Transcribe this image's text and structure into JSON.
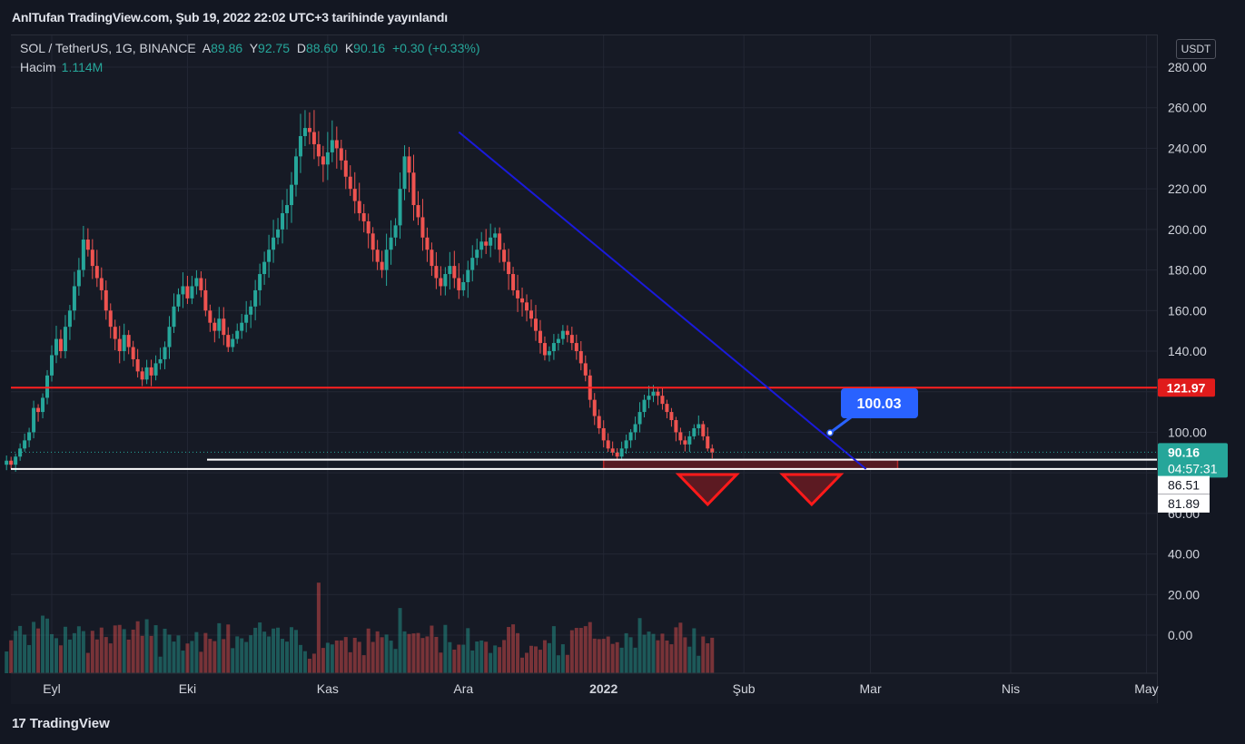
{
  "header": {
    "publish_line": "AnlTufan TradingView.com, Şub 19, 2022 22:02 UTC+3 tarihinde yayınlandı"
  },
  "legend": {
    "symbol": "SOL / TetherUS, 1G, BINANCE",
    "open_label": "A",
    "open": "89.86",
    "high_label": "Y",
    "high": "92.75",
    "low_label": "D",
    "low": "88.60",
    "close_label": "K",
    "close": "90.16",
    "change": "+0.30 (+0.33%)",
    "volume_label": "Hacim",
    "volume": "1.114M"
  },
  "currency_button": "USDT",
  "footer": {
    "logo_mark": "17",
    "brand": "TradingView"
  },
  "colors": {
    "up": "#26a69a",
    "down": "#ef5350",
    "trendline": "#1a1adb",
    "resistance": "#ff2020",
    "support": "#ffffff",
    "callout": "#2962ff"
  },
  "chart_data": {
    "type": "candlestick",
    "interval": "1G",
    "ylim": [
      -10,
      290
    ],
    "y_ticks": [
      "280.00",
      "260.00",
      "240.00",
      "220.00",
      "200.00",
      "180.00",
      "160.00",
      "140.00",
      "120.00",
      "100.00",
      "80.00",
      "60.00",
      "40.00",
      "20.00",
      "0.00"
    ],
    "x_ticks": [
      {
        "label": "Eyl",
        "date": "2021-09-01"
      },
      {
        "label": "Eki",
        "date": "2021-10-01"
      },
      {
        "label": "Kas",
        "date": "2021-11-01"
      },
      {
        "label": "Ara",
        "date": "2021-12-01"
      },
      {
        "label": "2022",
        "date": "2022-01-01"
      },
      {
        "label": "Şub",
        "date": "2022-02-01"
      },
      {
        "label": "Mar",
        "date": "2022-03-01"
      },
      {
        "label": "Nis",
        "date": "2022-04-01"
      },
      {
        "label": "May",
        "date": "2022-05-01"
      }
    ],
    "closes_first_date": "2021-08-22",
    "closes": [
      86,
      84,
      88,
      92,
      96,
      100,
      112,
      110,
      117,
      128,
      138,
      146,
      140,
      152,
      160,
      172,
      180,
      195,
      190,
      182,
      176,
      170,
      160,
      152,
      146,
      140,
      148,
      142,
      136,
      130,
      126,
      132,
      128,
      134,
      136,
      142,
      152,
      162,
      168,
      172,
      166,
      172,
      176,
      170,
      160,
      154,
      150,
      156,
      148,
      142,
      146,
      150,
      154,
      158,
      162,
      170,
      178,
      184,
      190,
      196,
      200,
      208,
      212,
      222,
      236,
      246,
      250,
      248,
      242,
      236,
      232,
      238,
      244,
      240,
      234,
      226,
      220,
      214,
      208,
      204,
      198,
      190,
      184,
      180,
      190,
      196,
      202,
      220,
      236,
      228,
      212,
      206,
      196,
      190,
      182,
      176,
      172,
      178,
      182,
      176,
      170,
      174,
      180,
      186,
      190,
      194,
      192,
      196,
      198,
      190,
      184,
      178,
      170,
      166,
      164,
      160,
      156,
      150,
      144,
      138,
      140,
      144,
      146,
      150,
      148,
      144,
      140,
      134,
      128,
      116,
      108,
      102,
      96,
      92,
      90,
      88,
      92,
      96,
      100,
      104,
      110,
      116,
      118,
      120,
      118,
      114,
      110,
      106,
      100,
      96,
      94,
      98,
      102,
      104,
      98,
      92,
      90
    ],
    "volume_max": 68,
    "price_lines": [
      {
        "price": 121.97,
        "label": "121.97",
        "color": "#ff2020"
      },
      {
        "price": 90.16,
        "label": "90.16",
        "sublabel": "04:57:31",
        "color": "#26a69a"
      },
      {
        "price": 86.51,
        "label": "86.51",
        "color": "#ffffff"
      },
      {
        "price": 81.89,
        "label": "81.89",
        "color": "#ffffff"
      }
    ],
    "annotations": {
      "callout": "100.03",
      "trendline": {
        "from": {
          "date": "2021-11-30",
          "price": 248
        },
        "to": {
          "date": "2022-02-28",
          "price": 81.89
        }
      },
      "resistance_price": 121.97,
      "support_prices": [
        86.51,
        81.89
      ],
      "demand_zone": {
        "from_date": "2022-01-01",
        "to_date": "2022-03-07",
        "top": 86.51,
        "bottom": 81.89
      },
      "markers": [
        {
          "date": "2022-01-24"
        },
        {
          "date": "2022-02-16"
        }
      ]
    }
  }
}
